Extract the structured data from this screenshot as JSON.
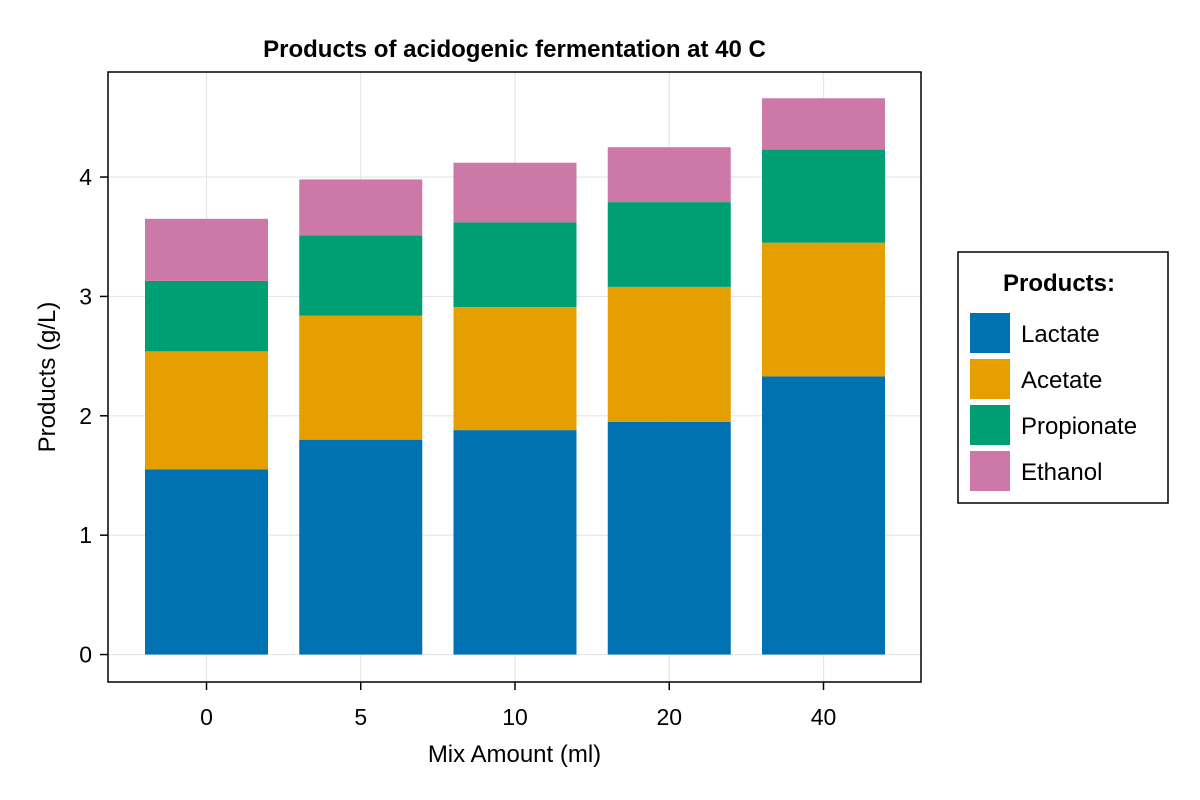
{
  "chart_data": {
    "type": "bar",
    "stacked": true,
    "title": "Products of acidogenic fermentation at 40 C",
    "xlabel": "Mix Amount (ml)",
    "ylabel": "Products (g/L)",
    "categories": [
      "0",
      "5",
      "10",
      "20",
      "40"
    ],
    "series": [
      {
        "name": "Lactate",
        "color": "#0072b2",
        "values": [
          1.55,
          1.8,
          1.88,
          1.95,
          2.33
        ]
      },
      {
        "name": "Acetate",
        "color": "#e69f00",
        "values": [
          0.99,
          1.04,
          1.03,
          1.13,
          1.12
        ]
      },
      {
        "name": "Propionate",
        "color": "#009e73",
        "values": [
          0.59,
          0.67,
          0.71,
          0.71,
          0.78
        ]
      },
      {
        "name": "Ethanol",
        "color": "#cc79a7",
        "values": [
          0.52,
          0.47,
          0.5,
          0.46,
          0.43
        ]
      }
    ],
    "yticks": [
      0,
      1,
      2,
      3,
      4
    ],
    "ylim": [
      -0.23,
      4.88
    ],
    "grid": true,
    "legend": {
      "title": "Products:",
      "position": "right"
    }
  }
}
